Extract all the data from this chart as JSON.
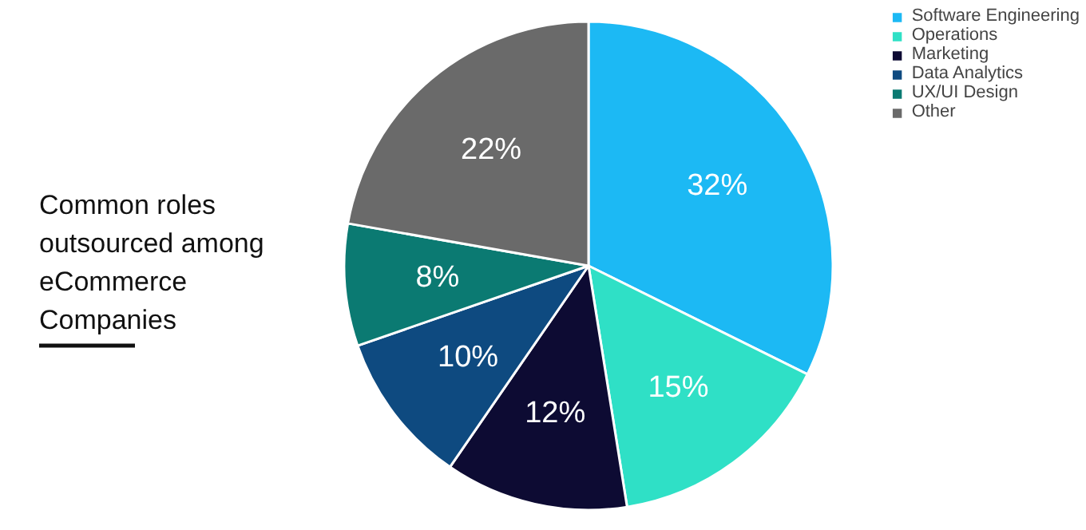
{
  "chart_data": {
    "type": "pie",
    "title": "Common roles outsourced among eCommerce Companies",
    "categories": [
      "Software Engineering",
      "Operations",
      "Marketing",
      "Data Analytics",
      "UX/UI Design",
      "Other"
    ],
    "values": [
      32,
      15,
      12,
      10,
      8,
      22
    ],
    "colors": [
      "#1cb9f4",
      "#2fe0c6",
      "#0d0b33",
      "#0e4a80",
      "#0b7a72",
      "#6a6a6a"
    ],
    "value_labels": [
      "32%",
      "15%",
      "12%",
      "10%",
      "8%",
      "22%"
    ],
    "legend": "top right"
  }
}
